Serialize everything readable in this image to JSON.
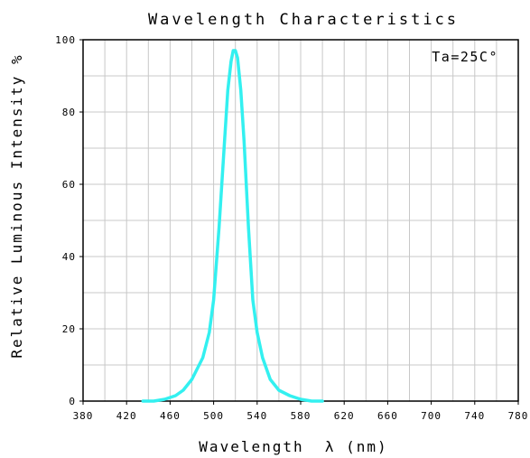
{
  "chart_data": {
    "type": "line",
    "title": "Wavelength Characteristics",
    "xlabel": "Wavelength  λ (nm)",
    "ylabel": "Relative Luminous Intensity %",
    "annotation": "Ta=25C°",
    "xlim": [
      380,
      780
    ],
    "ylim": [
      0,
      100
    ],
    "x_ticks": [
      "380",
      "420",
      "460",
      "500",
      "540",
      "580",
      "620",
      "660",
      "700",
      "740",
      "780"
    ],
    "y_ticks": [
      "0",
      "20",
      "40",
      "60",
      "80",
      "100"
    ],
    "grid": true,
    "series": [
      {
        "color": "#33f0f0",
        "x": [
          435,
          445,
          455,
          465,
          472,
          480,
          490,
          496,
          500,
          505,
          510,
          513,
          516,
          518,
          520,
          522,
          525,
          528,
          532,
          536,
          540,
          545,
          552,
          560,
          570,
          580,
          590,
          600
        ],
        "y": [
          0,
          0,
          0.5,
          1.5,
          3,
          6,
          12,
          19,
          28,
          48,
          72,
          86,
          94,
          97,
          97,
          95,
          86,
          72,
          48,
          28,
          19,
          12,
          6,
          3,
          1.5,
          0.5,
          0,
          0
        ]
      }
    ]
  }
}
